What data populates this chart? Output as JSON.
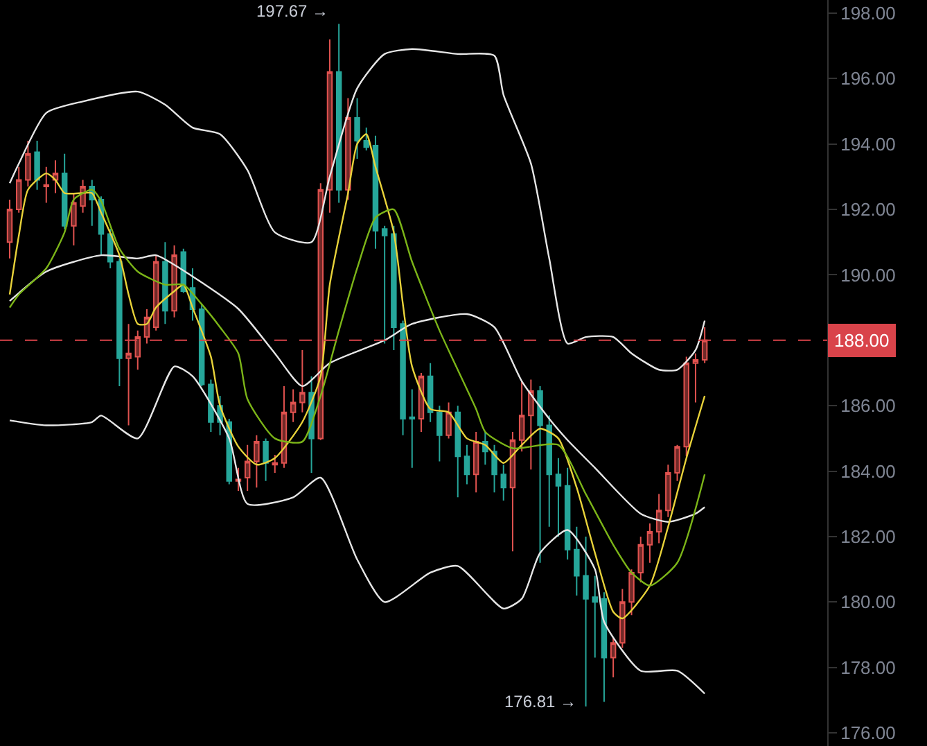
{
  "chart_data": {
    "type": "candlestick",
    "categories": [
      null,
      null,
      null,
      null,
      null,
      null,
      null,
      null,
      null,
      null,
      null,
      null,
      null,
      null,
      null,
      null,
      null,
      null,
      null,
      null,
      null,
      null,
      null,
      null,
      null,
      null,
      null,
      null,
      null,
      null,
      null,
      null,
      null,
      null,
      null,
      null,
      null,
      null,
      null,
      null,
      null,
      null,
      null,
      null,
      null,
      null,
      null,
      null,
      null,
      null,
      null,
      null,
      null,
      null,
      null,
      null,
      null,
      null,
      null,
      null,
      null,
      null,
      null,
      null,
      null,
      null,
      null,
      null,
      null,
      null,
      null,
      null,
      null,
      null,
      null,
      null,
      null
    ],
    "ohlc": [
      [
        191.0,
        192.3,
        190.5,
        192.0
      ],
      [
        192.0,
        193.3,
        191.9,
        192.9
      ],
      [
        192.9,
        194.1,
        192.7,
        193.7
      ],
      [
        193.75,
        194.1,
        192.6,
        192.9
      ],
      [
        192.7,
        193.3,
        192.2,
        192.75
      ],
      [
        192.9,
        193.5,
        192.5,
        193.1
      ],
      [
        193.1,
        193.7,
        191.4,
        191.5
      ],
      [
        191.5,
        192.5,
        190.9,
        192.2
      ],
      [
        192.1,
        192.9,
        191.9,
        192.7
      ],
      [
        192.7,
        192.9,
        191.5,
        192.3
      ],
      [
        192.3,
        192.4,
        190.6,
        191.25
      ],
      [
        191.25,
        191.4,
        190.2,
        190.4
      ],
      [
        190.4,
        190.5,
        186.6,
        187.45
      ],
      [
        187.45,
        188.5,
        185.4,
        187.6
      ],
      [
        187.5,
        188.3,
        187.1,
        188.1
      ],
      [
        188.1,
        188.95,
        187.9,
        188.7
      ],
      [
        188.4,
        190.6,
        188.3,
        190.4
      ],
      [
        190.4,
        191.0,
        188.5,
        188.9
      ],
      [
        188.9,
        190.9,
        188.7,
        190.6
      ],
      [
        190.7,
        190.8,
        189.45,
        189.5
      ],
      [
        189.6,
        190.2,
        188.6,
        188.95
      ],
      [
        188.95,
        189.1,
        186.6,
        186.65
      ],
      [
        186.65,
        186.8,
        185.2,
        185.5
      ],
      [
        186.0,
        186.3,
        185.1,
        185.5
      ],
      [
        185.5,
        185.6,
        183.6,
        183.7
      ],
      [
        183.7,
        184.1,
        183.4,
        183.75
      ],
      [
        183.8,
        184.8,
        183.4,
        184.3
      ],
      [
        184.3,
        185.1,
        183.5,
        184.9
      ],
      [
        184.9,
        185.0,
        183.7,
        184.25
      ],
      [
        184.2,
        184.5,
        183.95,
        184.25
      ],
      [
        184.25,
        186.6,
        184.1,
        185.8
      ],
      [
        185.8,
        186.5,
        185.5,
        186.1
      ],
      [
        186.1,
        187.7,
        185.8,
        186.4
      ],
      [
        186.4,
        186.9,
        183.95,
        185.0
      ],
      [
        185.0,
        192.8,
        184.95,
        192.6
      ],
      [
        192.6,
        197.2,
        191.9,
        196.2
      ],
      [
        196.2,
        197.67,
        192.2,
        192.6
      ],
      [
        192.6,
        195.4,
        192.3,
        194.8
      ],
      [
        194.8,
        195.4,
        193.55,
        194.1
      ],
      [
        194.1,
        194.5,
        193.8,
        193.9
      ],
      [
        193.95,
        194.25,
        190.8,
        191.35
      ],
      [
        191.4,
        191.5,
        187.9,
        191.2
      ],
      [
        191.25,
        191.5,
        187.7,
        188.4
      ],
      [
        188.5,
        188.6,
        185.1,
        185.6
      ],
      [
        185.65,
        186.5,
        184.1,
        185.6
      ],
      [
        185.6,
        187.0,
        185.2,
        186.9
      ],
      [
        186.9,
        187.3,
        185.5,
        185.8
      ],
      [
        185.8,
        186.0,
        184.3,
        185.1
      ],
      [
        185.1,
        186.1,
        185.0,
        185.8
      ],
      [
        185.8,
        186.0,
        183.2,
        184.45
      ],
      [
        184.45,
        184.8,
        183.6,
        183.9
      ],
      [
        183.9,
        185.2,
        183.35,
        184.9
      ],
      [
        184.9,
        185.2,
        184.2,
        184.6
      ],
      [
        184.6,
        184.8,
        183.35,
        183.9
      ],
      [
        183.9,
        184.2,
        183.1,
        183.5
      ],
      [
        183.5,
        185.2,
        181.55,
        184.95
      ],
      [
        184.95,
        186.75,
        184.6,
        185.7
      ],
      [
        185.7,
        186.8,
        184.05,
        186.45
      ],
      [
        186.45,
        186.6,
        181.2,
        185.4
      ],
      [
        185.4,
        185.7,
        182.3,
        183.9
      ],
      [
        183.9,
        184.4,
        182.0,
        183.55
      ],
      [
        183.55,
        184.1,
        181.3,
        181.6
      ],
      [
        181.6,
        182.3,
        180.2,
        180.8
      ],
      [
        180.8,
        182.0,
        176.81,
        180.1
      ],
      [
        180.15,
        180.8,
        178.3,
        180.0
      ],
      [
        180.1,
        180.3,
        176.95,
        178.3
      ],
      [
        178.3,
        178.9,
        177.7,
        178.75
      ],
      [
        178.75,
        180.4,
        178.6,
        180.0
      ],
      [
        180.0,
        181.0,
        179.6,
        180.9
      ],
      [
        180.9,
        182.0,
        180.6,
        181.75
      ],
      [
        181.75,
        182.4,
        181.2,
        182.15
      ],
      [
        182.15,
        183.3,
        181.8,
        182.8
      ],
      [
        182.8,
        184.2,
        182.6,
        183.95
      ],
      [
        183.95,
        184.8,
        183.7,
        184.75
      ],
      [
        184.75,
        187.5,
        184.45,
        187.3
      ],
      [
        187.3,
        187.6,
        186.1,
        187.4
      ],
      [
        187.4,
        188.4,
        187.3,
        188.0
      ]
    ],
    "colors": [
      "#e0524f",
      "#e0524f",
      "#e0524f",
      "#26a69a",
      "#e0524f",
      "#e0524f",
      "#26a69a",
      "#e0524f",
      "#e0524f",
      "#26a69a",
      "#26a69a",
      "#26a69a",
      "#26a69a",
      "#e0524f",
      "#e0524f",
      "#e0524f",
      "#e0524f",
      "#26a69a",
      "#e0524f",
      "#26a69a",
      "#26a69a",
      "#26a69a",
      "#26a69a",
      "#26a69a",
      "#26a69a",
      "#e0524f",
      "#e0524f",
      "#e0524f",
      "#26a69a",
      "#e0524f",
      "#e0524f",
      "#e0524f",
      "#e0524f",
      "#26a69a",
      "#e0524f",
      "#e0524f",
      "#26a69a",
      "#e0524f",
      "#26a69a",
      "#26a69a",
      "#26a69a",
      "#26a69a",
      "#26a69a",
      "#26a69a",
      "#26a69a",
      "#e0524f",
      "#26a69a",
      "#26a69a",
      "#e0524f",
      "#26a69a",
      "#26a69a",
      "#e0524f",
      "#26a69a",
      "#26a69a",
      "#26a69a",
      "#e0524f",
      "#e0524f",
      "#e0524f",
      "#26a69a",
      "#26a69a",
      "#26a69a",
      "#26a69a",
      "#26a69a",
      "#26a69a",
      "#26a69a",
      "#26a69a",
      "#e0524f",
      "#e0524f",
      "#e0524f",
      "#e0524f",
      "#e0524f",
      "#e0524f",
      "#e0524f",
      "#e0524f",
      "#e0524f",
      "#e0524f",
      "#e0524f"
    ],
    "series": [
      {
        "type": "line",
        "color": "#e6e6e6",
        "values": [
          192.8,
          193.4,
          null,
          null,
          194.95,
          null,
          null,
          null,
          195.3,
          null,
          null,
          null,
          null,
          null,
          195.6,
          null,
          null,
          195.2,
          null,
          null,
          194.5,
          null,
          null,
          194.3,
          null,
          null,
          193.2,
          null,
          null,
          191.3,
          null,
          null,
          null,
          191.0,
          null,
          193.0,
          null,
          null,
          195.7,
          null,
          null,
          196.75,
          null,
          null,
          196.9,
          null,
          null,
          null,
          null,
          196.75,
          null,
          null,
          null,
          196.7,
          195.5,
          null,
          null,
          193.4,
          null,
          190.5,
          null,
          187.9,
          null,
          188.1,
          null,
          null,
          188.1,
          null,
          187.6,
          null,
          null,
          187.1,
          null,
          187.1,
          null,
          187.7,
          188.6
        ]
      },
      {
        "type": "line",
        "color": "#e6e6e6",
        "values": [
          189.2,
          null,
          null,
          null,
          190.1,
          null,
          null,
          null,
          null,
          null,
          190.6,
          null,
          null,
          null,
          190.5,
          null,
          190.6,
          null,
          null,
          null,
          189.95,
          null,
          null,
          null,
          null,
          188.96,
          null,
          null,
          null,
          187.6,
          null,
          null,
          186.6,
          null,
          null,
          187.3,
          null,
          null,
          null,
          null,
          null,
          188.0,
          null,
          null,
          188.5,
          null,
          null,
          null,
          null,
          null,
          188.8,
          null,
          null,
          188.4,
          null,
          null,
          186.75,
          null,
          null,
          185.6,
          null,
          184.95,
          null,
          null,
          184.1,
          null,
          null,
          null,
          null,
          182.7,
          null,
          null,
          182.45,
          null,
          null,
          182.7,
          182.9
        ]
      },
      {
        "type": "line",
        "color": "#e6e6e6",
        "values": [
          185.55,
          null,
          null,
          null,
          185.4,
          null,
          null,
          null,
          null,
          185.5,
          185.7,
          null,
          null,
          null,
          185.0,
          null,
          null,
          null,
          187.2,
          null,
          186.9,
          null,
          null,
          null,
          185.0,
          null,
          183.0,
          null,
          null,
          null,
          null,
          183.2,
          null,
          null,
          183.8,
          null,
          null,
          null,
          181.3,
          null,
          null,
          180.0,
          null,
          null,
          null,
          null,
          180.9,
          null,
          null,
          181.1,
          null,
          null,
          null,
          null,
          179.8,
          null,
          180.1,
          null,
          181.5,
          null,
          null,
          182.2,
          null,
          null,
          181.0,
          179.4,
          null,
          null,
          null,
          177.9,
          null,
          null,
          null,
          177.9,
          null,
          null,
          177.2
        ]
      },
      {
        "type": "line",
        "color": "#e8d23a",
        "values": [
          189.4,
          191.2,
          192.6,
          null,
          193.1,
          192.9,
          192.5,
          null,
          192.5,
          192.5,
          191.9,
          null,
          190.6,
          189.4,
          188.5,
          188.5,
          189.0,
          null,
          189.5,
          189.7,
          189.0,
          null,
          187.5,
          186.0,
          null,
          184.75,
          null,
          184.2,
          null,
          184.4,
          null,
          null,
          185.5,
          null,
          186.9,
          189.7,
          null,
          192.5,
          194.0,
          194.3,
          193.3,
          null,
          191.3,
          189.1,
          187.2,
          null,
          185.9,
          null,
          185.8,
          null,
          185.0,
          null,
          184.8,
          null,
          184.25,
          null,
          184.8,
          null,
          185.3,
          null,
          185.0,
          null,
          183.5,
          null,
          181.5,
          null,
          179.7,
          179.5,
          null,
          null,
          180.5,
          null,
          182.3,
          null,
          184.4,
          null,
          186.3
        ]
      },
      {
        "type": "line",
        "color": "#7cb518",
        "values": [
          189.0,
          189.4,
          null,
          null,
          190.2,
          null,
          191.3,
          192.3,
          null,
          192.6,
          192.25,
          null,
          190.8,
          null,
          190.1,
          null,
          null,
          189.7,
          null,
          189.7,
          null,
          189.1,
          null,
          188.4,
          null,
          187.6,
          186.2,
          null,
          null,
          185.0,
          null,
          null,
          184.9,
          null,
          186.3,
          null,
          188.3,
          null,
          190.2,
          null,
          191.75,
          null,
          192.0,
          null,
          190.4,
          null,
          null,
          188.3,
          null,
          null,
          null,
          185.9,
          185.2,
          null,
          null,
          184.7,
          null,
          null,
          null,
          null,
          184.8,
          null,
          null,
          183.3,
          null,
          null,
          181.75,
          null,
          180.9,
          null,
          180.5,
          null,
          null,
          181.2,
          null,
          null,
          183.9
        ]
      }
    ],
    "ylim": [
      175.6,
      198.4
    ],
    "yticks": [
      {
        "value": 176,
        "label": "176.00"
      },
      {
        "value": 178,
        "label": "178.00"
      },
      {
        "value": 180,
        "label": "180.00"
      },
      {
        "value": 182,
        "label": "182.00"
      },
      {
        "value": 184,
        "label": "184.00"
      },
      {
        "value": 186,
        "label": "186.00"
      },
      {
        "value": 188,
        "label": null
      },
      {
        "value": 190,
        "label": "190.00"
      },
      {
        "value": 192,
        "label": "192.00"
      },
      {
        "value": 194,
        "label": "194.00"
      },
      {
        "value": 196,
        "label": "196.00"
      },
      {
        "value": 198,
        "label": "198.00"
      }
    ],
    "ref_lines": [
      {
        "axis": "y",
        "value": 188,
        "label": "188.00",
        "color": "#d9434a",
        "line_style": "dashed"
      }
    ],
    "annotations": [
      "197.67 →",
      "176.81 →"
    ],
    "tick_labels": "y",
    "grid": false
  }
}
